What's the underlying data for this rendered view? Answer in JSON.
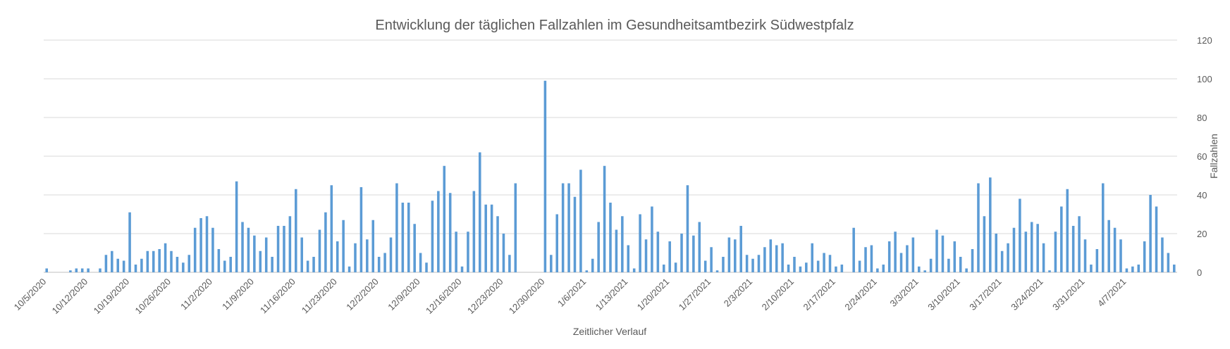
{
  "chart_data": {
    "type": "bar",
    "title": "Entwicklung der täglichen Fallzahlen im Gesundheitsamtbezirk Südwestpfalz",
    "xlabel": "Zeitlicher Verlauf",
    "ylabel": "Fallzahlen",
    "ylim": [
      0,
      120
    ],
    "yticks": [
      0,
      20,
      40,
      60,
      80,
      100,
      120
    ],
    "y_axis_side": "right",
    "grid": true,
    "legend": "none",
    "bar_color": "#5b9bd5",
    "gridline_color": "#d9d9d9",
    "start_date": "2020-10-05",
    "xtick_labels": [
      "10/5/2020",
      "10/12/2020",
      "10/19/2020",
      "10/26/2020",
      "11/2/2020",
      "11/9/2020",
      "11/16/2020",
      "11/23/2020",
      "12/2/2020",
      "12/9/2020",
      "12/16/2020",
      "12/23/2020",
      "12/30/2020",
      "1/6/2021",
      "1/13/2021",
      "1/20/2021",
      "1/27/2021",
      "2/3/2021",
      "2/10/2021",
      "2/17/2021",
      "2/24/2021",
      "3/3/2021",
      "3/10/2021",
      "3/17/2021",
      "3/24/2021",
      "3/31/2021",
      "4/7/2021"
    ],
    "values": [
      2,
      0,
      0,
      0,
      1,
      2,
      2,
      2,
      0,
      2,
      9,
      11,
      7,
      6,
      31,
      4,
      7,
      11,
      11,
      12,
      15,
      11,
      8,
      5,
      9,
      23,
      28,
      29,
      23,
      12,
      6,
      8,
      47,
      26,
      23,
      19,
      11,
      18,
      8,
      24,
      24,
      29,
      43,
      18,
      6,
      8,
      22,
      31,
      45,
      16,
      27,
      3,
      15,
      44,
      17,
      27,
      8,
      10,
      18,
      46,
      36,
      36,
      25,
      10,
      5,
      37,
      42,
      55,
      41,
      21,
      3,
      21,
      42,
      62,
      35,
      35,
      29,
      20,
      9,
      46,
      0,
      0,
      0,
      0,
      99,
      9,
      30,
      46,
      46,
      39,
      53,
      1,
      7,
      26,
      55,
      36,
      22,
      29,
      14,
      2,
      30,
      17,
      34,
      21,
      4,
      16,
      5,
      20,
      45,
      19,
      26,
      6,
      13,
      1,
      8,
      18,
      17,
      24,
      9,
      7,
      9,
      13,
      17,
      14,
      15,
      4,
      8,
      3,
      5,
      15,
      6,
      10,
      9,
      3,
      4,
      0,
      23,
      6,
      13,
      14,
      2,
      4,
      16,
      21,
      10,
      14,
      18,
      3,
      1,
      7,
      22,
      19,
      7,
      16,
      8,
      2,
      12,
      46,
      29,
      49,
      20,
      11,
      15,
      23,
      38,
      21,
      26,
      25,
      15,
      1,
      21,
      34,
      43,
      24,
      29,
      17,
      4,
      12,
      46,
      27,
      23,
      17,
      2,
      3,
      4,
      16,
      40,
      34,
      18,
      10,
      4
    ]
  }
}
